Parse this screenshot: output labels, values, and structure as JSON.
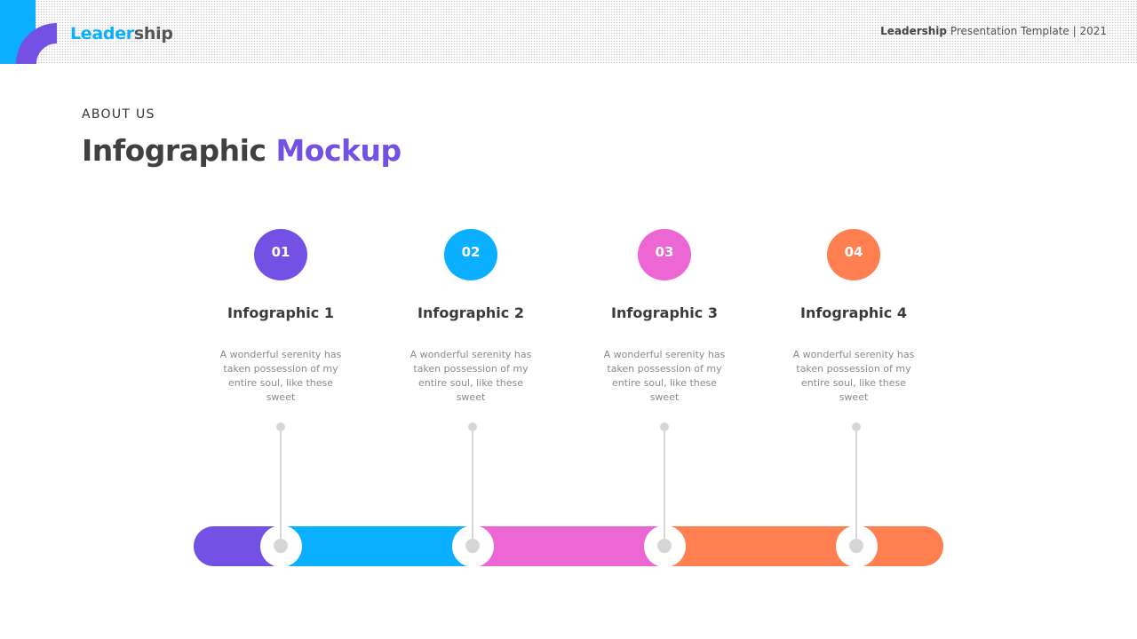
{
  "header": {
    "logo_part1": "Leader",
    "logo_part2": "ship",
    "title_bold": "Leadership",
    "title_rest": "Presentation  Template | 2021"
  },
  "slide": {
    "eyebrow": "ABOUT US",
    "title_part1": "Infographic",
    "title_part2": "Mockup"
  },
  "colors": {
    "purple": "#7450e4",
    "blue": "#0bafff",
    "pink": "#ec66d4",
    "orange": "#ff7f50"
  },
  "items": [
    {
      "number": "01",
      "title": "Infographic 1",
      "text": "A wonderful serenity has taken possession of my entire soul, like these sweet",
      "color": "#7450e4"
    },
    {
      "number": "02",
      "title": "Infographic 2",
      "text": "A wonderful serenity has taken possession of my entire soul, like these sweet",
      "color": "#0bafff"
    },
    {
      "number": "03",
      "title": "Infographic 3",
      "text": "A wonderful serenity has taken possession of my entire soul, like these sweet",
      "color": "#ec66d4"
    },
    {
      "number": "04",
      "title": "Infographic 4",
      "text": "A wonderful serenity has taken possession of my entire soul, like these sweet",
      "color": "#ff7f50"
    }
  ]
}
